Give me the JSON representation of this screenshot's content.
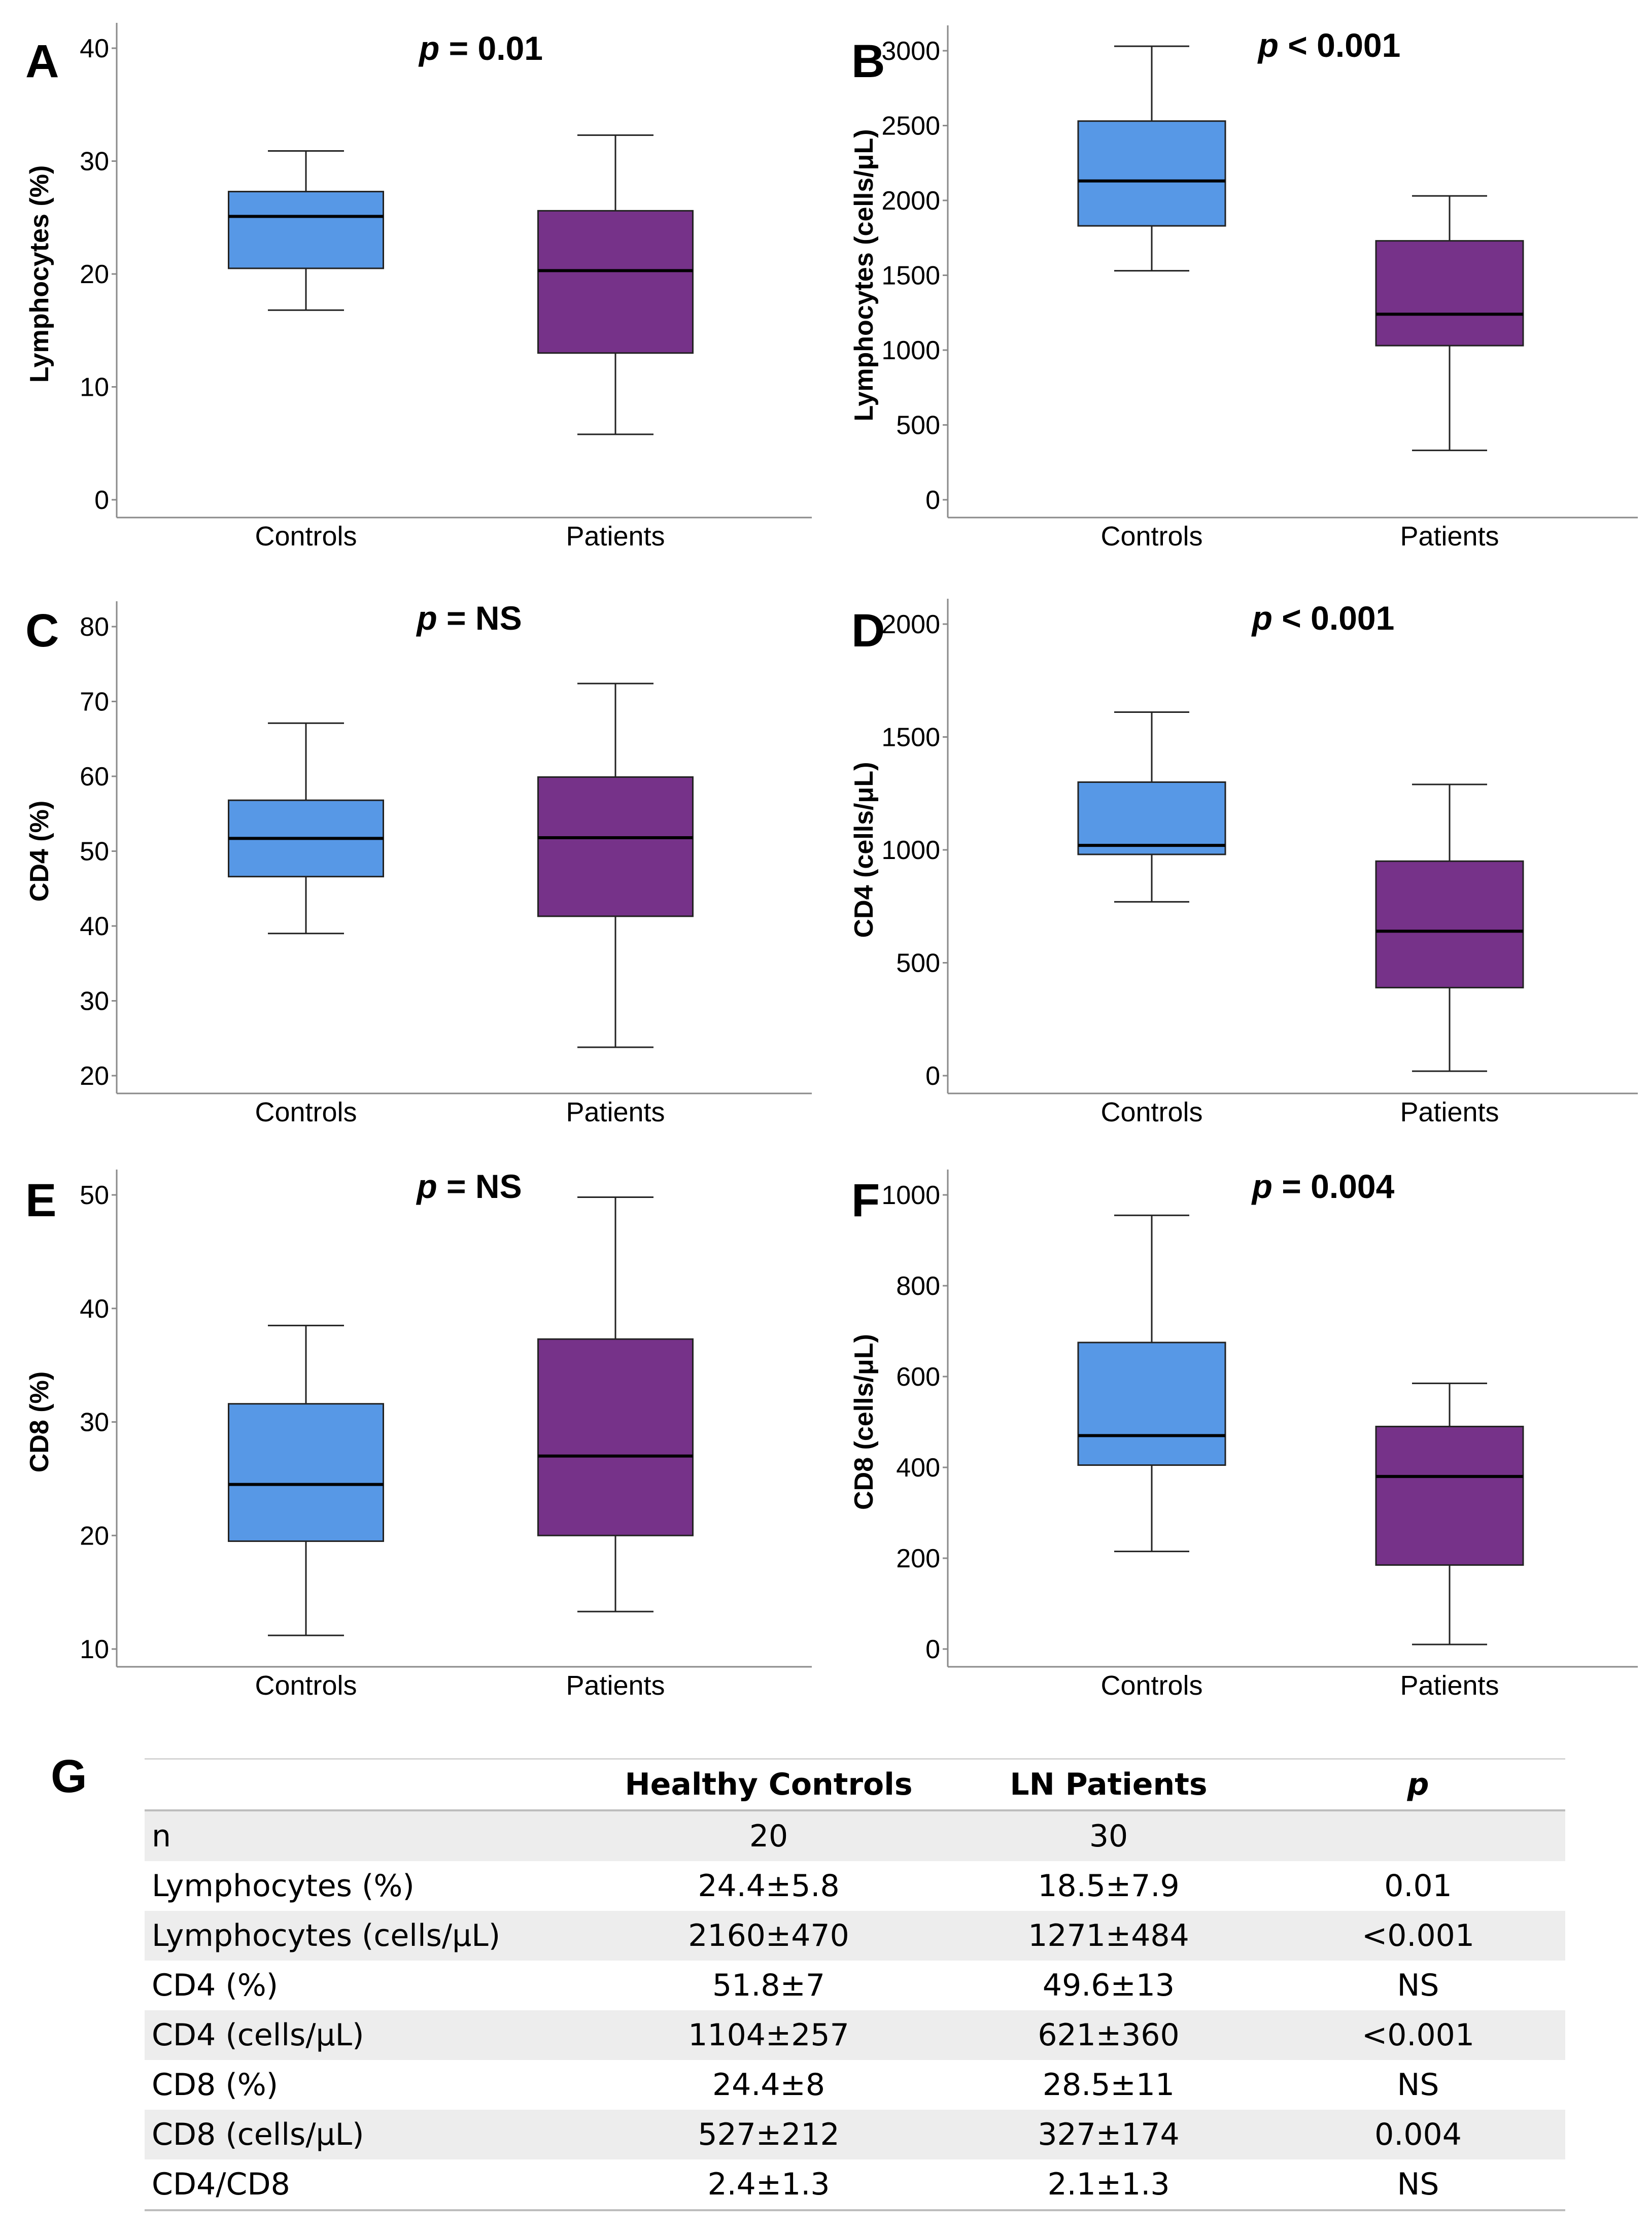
{
  "colors": {
    "controls": "#5798e6",
    "patients": "#763289",
    "axis": "#8a8a8a"
  },
  "chart_data": [
    {
      "id": "A",
      "letter": "A",
      "type": "box",
      "ylabel": "Lymphocytes (%)",
      "ylim": [
        0,
        40
      ],
      "ticks": [
        0,
        10,
        20,
        30,
        40
      ],
      "tick_labels": [
        "0",
        "10",
        "20",
        "30",
        "40"
      ],
      "p_prefix": "p",
      "p_value": " = 0.01",
      "categories": [
        "Controls",
        "Patients"
      ],
      "boxes": [
        {
          "group": "Controls",
          "min": 16.8,
          "q1": 20.5,
          "median": 25.1,
          "q3": 27.3,
          "max": 30.9
        },
        {
          "group": "Patients",
          "min": 5.8,
          "q1": 13.0,
          "median": 20.3,
          "q3": 25.6,
          "max": 32.3
        }
      ]
    },
    {
      "id": "B",
      "letter": "B",
      "type": "box",
      "ylabel": "Lymphocytes (cells/μL)",
      "ylim": [
        0,
        3000
      ],
      "ticks": [
        0,
        500,
        1000,
        1500,
        2000,
        2500,
        3000
      ],
      "tick_labels": [
        "0",
        "500",
        "1000",
        "1500",
        "2000",
        "2500",
        "3000"
      ],
      "p_prefix": "p",
      "p_value": " < 0.001",
      "categories": [
        "Controls",
        "Patients"
      ],
      "boxes": [
        {
          "group": "Controls",
          "min": 1530,
          "q1": 1830,
          "median": 2130,
          "q3": 2530,
          "max": 3030
        },
        {
          "group": "Patients",
          "min": 330,
          "q1": 1030,
          "median": 1240,
          "q3": 1730,
          "max": 2030
        }
      ]
    },
    {
      "id": "C",
      "letter": "C",
      "type": "box",
      "ylabel": "CD4 (%)",
      "ylim": [
        20,
        80
      ],
      "ticks": [
        20,
        30,
        40,
        50,
        60,
        70,
        80
      ],
      "tick_labels": [
        "20",
        "30",
        "40",
        "50",
        "60",
        "70",
        "80"
      ],
      "p_prefix": "p",
      "p_value": " = NS",
      "categories": [
        "Controls",
        "Patients"
      ],
      "boxes": [
        {
          "group": "Controls",
          "min": 39,
          "q1": 46.6,
          "median": 51.7,
          "q3": 56.8,
          "max": 67.1
        },
        {
          "group": "Patients",
          "min": 23.8,
          "q1": 41.3,
          "median": 51.8,
          "q3": 59.9,
          "max": 72.4
        }
      ]
    },
    {
      "id": "D",
      "letter": "D",
      "type": "box",
      "ylabel": "CD4 (cells/μL)",
      "ylim": [
        0,
        2000
      ],
      "ticks": [
        0,
        500,
        1000,
        1500,
        2000
      ],
      "tick_labels": [
        "0",
        "500",
        "1000",
        "1500",
        "2000"
      ],
      "p_prefix": "p",
      "p_value": " < 0.001",
      "categories": [
        "Controls",
        "Patients"
      ],
      "boxes": [
        {
          "group": "Controls",
          "min": 770,
          "q1": 980,
          "median": 1020,
          "q3": 1300,
          "max": 1610
        },
        {
          "group": "Patients",
          "min": 20,
          "q1": 390,
          "median": 640,
          "q3": 950,
          "max": 1290
        }
      ]
    },
    {
      "id": "E",
      "letter": "E",
      "type": "box",
      "ylabel": "CD8 (%)",
      "ylim": [
        10,
        50
      ],
      "ticks": [
        10,
        20,
        30,
        40,
        50
      ],
      "tick_labels": [
        "10",
        "20",
        "30",
        "40",
        "50"
      ],
      "p_prefix": "p",
      "p_value": " = NS",
      "categories": [
        "Controls",
        "Patients"
      ],
      "boxes": [
        {
          "group": "Controls",
          "min": 11.2,
          "q1": 19.5,
          "median": 24.5,
          "q3": 31.6,
          "max": 38.5
        },
        {
          "group": "Patients",
          "min": 13.3,
          "q1": 20.0,
          "median": 27.0,
          "q3": 37.3,
          "max": 49.8
        }
      ]
    },
    {
      "id": "F",
      "letter": "F",
      "type": "box",
      "ylabel": "CD8 (cells/μL)",
      "ylim": [
        0,
        1000
      ],
      "ticks": [
        0,
        200,
        400,
        600,
        800,
        1000
      ],
      "tick_labels": [
        "0",
        "200",
        "400",
        "600",
        "800",
        "1000"
      ],
      "p_prefix": "p",
      "p_value": " = 0.004",
      "categories": [
        "Controls",
        "Patients"
      ],
      "boxes": [
        {
          "group": "Controls",
          "min": 215,
          "q1": 405,
          "median": 470,
          "q3": 675,
          "max": 955
        },
        {
          "group": "Patients",
          "min": 10,
          "q1": 185,
          "median": 380,
          "q3": 490,
          "max": 585
        }
      ]
    }
  ],
  "table": {
    "letter": "G",
    "headers": [
      "",
      "Healthy Controls",
      "LN Patients",
      "p"
    ],
    "rows": [
      [
        "n",
        "20",
        "30",
        ""
      ],
      [
        "Lymphocytes (%)",
        "24.4±5.8",
        "18.5±7.9",
        "0.01"
      ],
      [
        "Lymphocytes (cells/μL)",
        "2160±470",
        "1271±484",
        "<0.001"
      ],
      [
        "CD4 (%)",
        "51.8±7",
        "49.6±13",
        "NS"
      ],
      [
        "CD4 (cells/μL)",
        "1104±257",
        "621±360",
        "<0.001"
      ],
      [
        "CD8 (%)",
        "24.4±8",
        "28.5±11",
        "NS"
      ],
      [
        "CD8 (cells/μL)",
        "527±212",
        "327±174",
        "0.004"
      ],
      [
        "CD4/CD8",
        "2.4±1.3",
        "2.1±1.3",
        "NS"
      ]
    ]
  }
}
